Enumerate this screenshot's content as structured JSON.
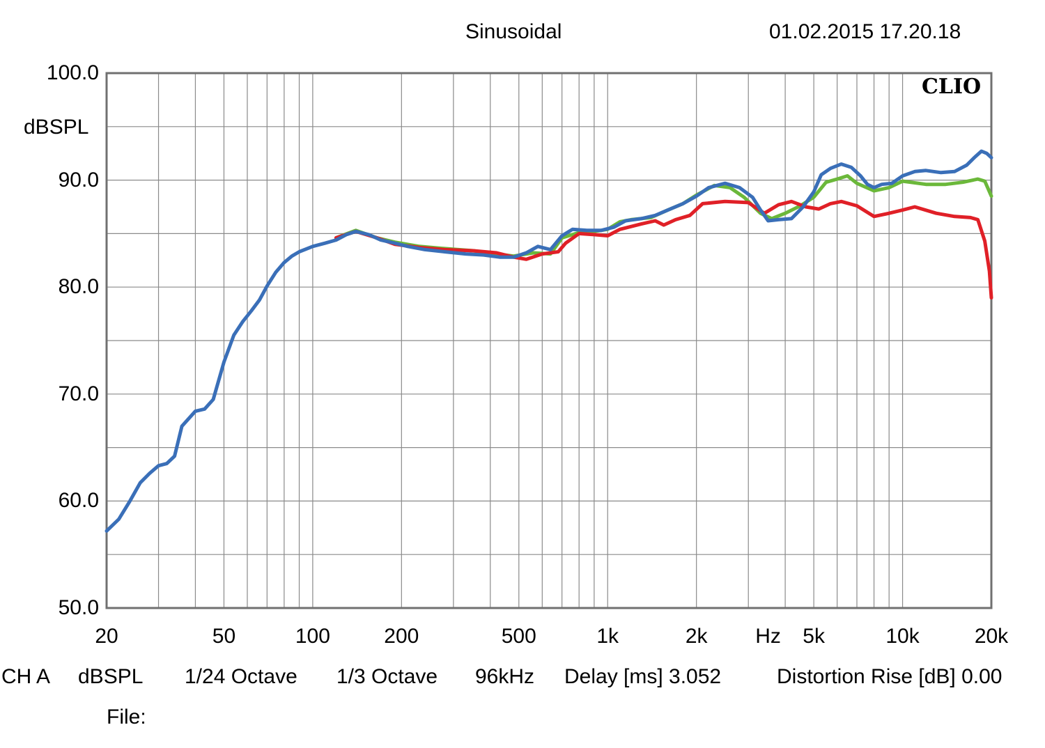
{
  "header": {
    "mode": "Sinusoidal",
    "timestamp": "01.02.2015 17.20.18"
  },
  "brand": "CLIO",
  "footer": {
    "channel": "CH A",
    "unit": "dBSPL",
    "resolution": "1/24 Octave",
    "smoothing": "1/3 Octave",
    "sample_rate": "96kHz",
    "delay": "Delay [ms] 3.052",
    "distortion": "Distortion Rise [dB] 0.00",
    "file_label": "File:"
  },
  "chart_data": {
    "type": "line",
    "title": "Sinusoidal",
    "xlabel": "Hz",
    "ylabel": "dBSPL",
    "xscale": "log",
    "xlim": [
      20,
      20000
    ],
    "ylim": [
      50,
      100
    ],
    "grid": true,
    "y_ticks": [
      {
        "value": 100,
        "label": "100.0"
      },
      {
        "value": 90,
        "label": "90.0"
      },
      {
        "value": 80,
        "label": "80.0"
      },
      {
        "value": 70,
        "label": "70.0"
      },
      {
        "value": 60,
        "label": "60.0"
      },
      {
        "value": 50,
        "label": "50.0"
      }
    ],
    "x_ticks": [
      {
        "value": 20,
        "label": "20"
      },
      {
        "value": 50,
        "label": "50"
      },
      {
        "value": 100,
        "label": "100"
      },
      {
        "value": 200,
        "label": "200"
      },
      {
        "value": 500,
        "label": "500"
      },
      {
        "value": 1000,
        "label": "1k"
      },
      {
        "value": 2000,
        "label": "2k"
      },
      {
        "value": 5000,
        "label": "5k"
      },
      {
        "value": 10000,
        "label": "10k"
      },
      {
        "value": 20000,
        "label": "20k"
      }
    ],
    "x_unit_tick": {
      "value": 3500,
      "label": "Hz"
    },
    "series": [
      {
        "name": "green",
        "color": "#6bb83a",
        "points": [
          [
            120,
            84.6
          ],
          [
            140,
            85.3
          ],
          [
            165,
            84.6
          ],
          [
            190,
            84.2
          ],
          [
            230,
            83.8
          ],
          [
            280,
            83.6
          ],
          [
            350,
            83.4
          ],
          [
            420,
            83.1
          ],
          [
            480,
            82.9
          ],
          [
            560,
            83.2
          ],
          [
            640,
            83.1
          ],
          [
            700,
            84.6
          ],
          [
            800,
            85.1
          ],
          [
            900,
            85.2
          ],
          [
            1000,
            85.4
          ],
          [
            1100,
            86.1
          ],
          [
            1200,
            86.3
          ],
          [
            1400,
            86.5
          ],
          [
            1600,
            87.2
          ],
          [
            1800,
            87.8
          ],
          [
            2000,
            88.6
          ],
          [
            2300,
            89.5
          ],
          [
            2600,
            89.3
          ],
          [
            2900,
            88.4
          ],
          [
            3300,
            86.9
          ],
          [
            3600,
            86.4
          ],
          [
            4000,
            86.9
          ],
          [
            4500,
            87.6
          ],
          [
            5000,
            88.4
          ],
          [
            5500,
            89.8
          ],
          [
            6000,
            90.1
          ],
          [
            6500,
            90.4
          ],
          [
            7000,
            89.7
          ],
          [
            8000,
            89.0
          ],
          [
            9000,
            89.3
          ],
          [
            10000,
            89.9
          ],
          [
            12000,
            89.6
          ],
          [
            14000,
            89.6
          ],
          [
            16000,
            89.8
          ],
          [
            18000,
            90.1
          ],
          [
            19000,
            89.9
          ],
          [
            20000,
            88.5
          ]
        ]
      },
      {
        "name": "red",
        "color": "#e02027",
        "points": [
          [
            120,
            84.6
          ],
          [
            140,
            85.2
          ],
          [
            165,
            84.6
          ],
          [
            190,
            84.0
          ],
          [
            230,
            83.7
          ],
          [
            280,
            83.5
          ],
          [
            350,
            83.4
          ],
          [
            420,
            83.2
          ],
          [
            480,
            82.8
          ],
          [
            530,
            82.6
          ],
          [
            600,
            83.1
          ],
          [
            680,
            83.3
          ],
          [
            720,
            84.1
          ],
          [
            800,
            85.0
          ],
          [
            900,
            84.9
          ],
          [
            1000,
            84.8
          ],
          [
            1100,
            85.4
          ],
          [
            1300,
            85.9
          ],
          [
            1450,
            86.2
          ],
          [
            1550,
            85.8
          ],
          [
            1700,
            86.3
          ],
          [
            1900,
            86.7
          ],
          [
            2100,
            87.8
          ],
          [
            2500,
            88.0
          ],
          [
            3000,
            87.9
          ],
          [
            3400,
            86.9
          ],
          [
            3800,
            87.7
          ],
          [
            4200,
            88.0
          ],
          [
            4700,
            87.5
          ],
          [
            5200,
            87.3
          ],
          [
            5700,
            87.8
          ],
          [
            6200,
            88.0
          ],
          [
            7000,
            87.6
          ],
          [
            8000,
            86.6
          ],
          [
            9000,
            86.9
          ],
          [
            10000,
            87.2
          ],
          [
            11000,
            87.5
          ],
          [
            13000,
            86.9
          ],
          [
            15000,
            86.6
          ],
          [
            17000,
            86.5
          ],
          [
            18000,
            86.3
          ],
          [
            19000,
            84.3
          ],
          [
            19700,
            81.5
          ],
          [
            20000,
            79.0
          ]
        ]
      },
      {
        "name": "blue",
        "color": "#3a6fb8",
        "points": [
          [
            20,
            57.2
          ],
          [
            22,
            58.3
          ],
          [
            24,
            60.0
          ],
          [
            26,
            61.7
          ],
          [
            28,
            62.6
          ],
          [
            30,
            63.3
          ],
          [
            32,
            63.5
          ],
          [
            34,
            64.2
          ],
          [
            36,
            67.0
          ],
          [
            40,
            68.4
          ],
          [
            43,
            68.6
          ],
          [
            46,
            69.5
          ],
          [
            50,
            73.0
          ],
          [
            54,
            75.5
          ],
          [
            58,
            76.8
          ],
          [
            62,
            77.8
          ],
          [
            66,
            78.8
          ],
          [
            70,
            80.1
          ],
          [
            75,
            81.4
          ],
          [
            80,
            82.3
          ],
          [
            85,
            82.9
          ],
          [
            90,
            83.3
          ],
          [
            100,
            83.8
          ],
          [
            110,
            84.1
          ],
          [
            120,
            84.4
          ],
          [
            130,
            84.9
          ],
          [
            140,
            85.2
          ],
          [
            155,
            84.9
          ],
          [
            170,
            84.4
          ],
          [
            190,
            84.1
          ],
          [
            210,
            83.8
          ],
          [
            240,
            83.5
          ],
          [
            280,
            83.3
          ],
          [
            330,
            83.1
          ],
          [
            380,
            83.0
          ],
          [
            430,
            82.8
          ],
          [
            480,
            82.8
          ],
          [
            530,
            83.2
          ],
          [
            580,
            83.8
          ],
          [
            640,
            83.5
          ],
          [
            700,
            84.8
          ],
          [
            760,
            85.4
          ],
          [
            850,
            85.3
          ],
          [
            950,
            85.3
          ],
          [
            1050,
            85.6
          ],
          [
            1150,
            86.2
          ],
          [
            1300,
            86.4
          ],
          [
            1450,
            86.7
          ],
          [
            1600,
            87.2
          ],
          [
            1800,
            87.8
          ],
          [
            2000,
            88.5
          ],
          [
            2200,
            89.3
          ],
          [
            2500,
            89.7
          ],
          [
            2800,
            89.3
          ],
          [
            3100,
            88.4
          ],
          [
            3300,
            87.2
          ],
          [
            3500,
            86.2
          ],
          [
            3800,
            86.3
          ],
          [
            4200,
            86.4
          ],
          [
            4600,
            87.5
          ],
          [
            5000,
            88.9
          ],
          [
            5300,
            90.5
          ],
          [
            5700,
            91.1
          ],
          [
            6200,
            91.5
          ],
          [
            6700,
            91.2
          ],
          [
            7200,
            90.4
          ],
          [
            7600,
            89.6
          ],
          [
            8000,
            89.3
          ],
          [
            8500,
            89.6
          ],
          [
            9200,
            89.7
          ],
          [
            10000,
            90.4
          ],
          [
            11000,
            90.8
          ],
          [
            12000,
            90.9
          ],
          [
            13500,
            90.7
          ],
          [
            15000,
            90.8
          ],
          [
            16500,
            91.4
          ],
          [
            17500,
            92.1
          ],
          [
            18500,
            92.7
          ],
          [
            19300,
            92.5
          ],
          [
            20000,
            92.1
          ]
        ]
      }
    ]
  }
}
